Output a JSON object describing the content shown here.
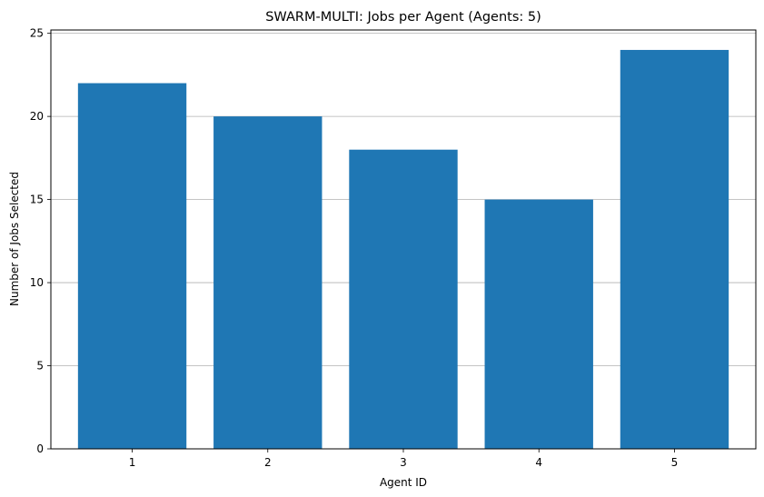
{
  "chart_data": {
    "type": "bar",
    "title": "SWARM-MULTI: Jobs per Agent (Agents: 5)",
    "xlabel": "Agent ID",
    "ylabel": "Number of Jobs Selected",
    "categories": [
      "1",
      "2",
      "3",
      "4",
      "5"
    ],
    "values": [
      22,
      20,
      18,
      15,
      24
    ],
    "ylim": [
      0,
      25.2
    ],
    "yticks": [
      0,
      5,
      10,
      15,
      20,
      25
    ],
    "grid": "y-major",
    "legend": "none",
    "bar_color": "#1f77b4",
    "grid_color": "#b0b0b0"
  }
}
